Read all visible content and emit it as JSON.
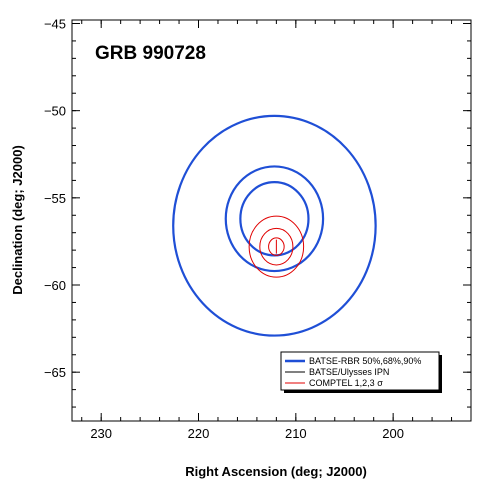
{
  "chart_data": {
    "type": "scatter",
    "annotation": "GRB 990728",
    "xlabel": "Right Ascension (deg; J2000)",
    "ylabel": "Declination (deg; J2000)",
    "xlim": [
      233,
      192
    ],
    "ylim": [
      -67.8,
      -44.8
    ],
    "x_ticks": [
      230,
      220,
      210,
      200
    ],
    "y_ticks": [
      -45,
      -50,
      -55,
      -60,
      -65
    ],
    "x_minor_step": 2,
    "y_minor_step": 1,
    "grid": false,
    "legend_position": "bottom-right",
    "legend": [
      {
        "label": "BATSE-RBR 50%,68%,90%",
        "color": "#1f4fd6"
      },
      {
        "label": "BATSE/Ulysses IPN",
        "color": "#000000"
      },
      {
        "label": "COMPTEL 1,2,3 σ",
        "color": "#e00000"
      }
    ],
    "series": [
      {
        "name": "BATSE-RBR 50%,68%,90%",
        "color": "#1f4fd6",
        "contours": [
          {
            "level": "50%",
            "center": [
              212.2,
              -56.2
            ],
            "rx": 3.5,
            "ry": 2.1
          },
          {
            "level": "68%",
            "center": [
              212.2,
              -56.2
            ],
            "rx": 5.0,
            "ry": 3.0
          },
          {
            "level": "90%",
            "center": [
              212.2,
              -56.6
            ],
            "rx": 10.4,
            "ry": 6.3
          }
        ]
      },
      {
        "name": "BATSE/Ulysses IPN",
        "color": "#000000",
        "contours": []
      },
      {
        "name": "COMPTEL 1,2,3 σ",
        "color": "#e00000",
        "contours": [
          {
            "level": "1σ",
            "center": [
              212.0,
              -57.8
            ],
            "rx": 0.8,
            "ry": 0.5
          },
          {
            "level": "2σ",
            "center": [
              212.0,
              -57.8
            ],
            "rx": 1.7,
            "ry": 1.05
          },
          {
            "level": "3σ",
            "center": [
              212.0,
              -57.8
            ],
            "rx": 2.8,
            "ry": 1.75
          }
        ]
      }
    ]
  }
}
